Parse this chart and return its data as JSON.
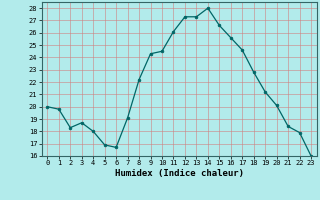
{
  "x": [
    0,
    1,
    2,
    3,
    4,
    5,
    6,
    7,
    8,
    9,
    10,
    11,
    12,
    13,
    14,
    15,
    16,
    17,
    18,
    19,
    20,
    21,
    22,
    23
  ],
  "y": [
    20,
    19.8,
    18.3,
    18.7,
    18.0,
    16.9,
    16.7,
    19.1,
    22.2,
    24.3,
    24.5,
    26.1,
    27.3,
    27.3,
    28.0,
    26.6,
    25.6,
    24.6,
    22.8,
    21.2,
    20.1,
    18.4,
    17.9,
    16.0
  ],
  "line_color": "#006666",
  "marker_color": "#006666",
  "bg_color": "#b2ebeb",
  "grid_color": "#d08080",
  "xlabel": "Humidex (Indice chaleur)",
  "xlim": [
    -0.5,
    23.5
  ],
  "ylim": [
    16,
    28.5
  ],
  "yticks": [
    16,
    17,
    18,
    19,
    20,
    21,
    22,
    23,
    24,
    25,
    26,
    27,
    28
  ],
  "xticks": [
    0,
    1,
    2,
    3,
    4,
    5,
    6,
    7,
    8,
    9,
    10,
    11,
    12,
    13,
    14,
    15,
    16,
    17,
    18,
    19,
    20,
    21,
    22,
    23
  ]
}
